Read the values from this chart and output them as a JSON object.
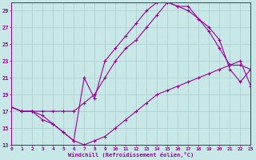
{
  "xlabel": "Windchill (Refroidissement éolien,°C)",
  "background_color": "#c8e8e8",
  "line_color": "#990099",
  "grid_color": "#aacccc",
  "ylim": [
    13,
    30
  ],
  "xlim": [
    0,
    23
  ],
  "yticks": [
    13,
    15,
    17,
    19,
    21,
    23,
    25,
    27,
    29
  ],
  "xticks": [
    0,
    1,
    2,
    3,
    4,
    5,
    6,
    7,
    8,
    9,
    10,
    11,
    12,
    13,
    14,
    15,
    16,
    17,
    18,
    19,
    20,
    21,
    22,
    23
  ],
  "curve1_x": [
    0,
    1,
    2,
    3,
    4,
    5,
    6,
    7,
    8,
    9,
    10,
    11,
    12,
    13,
    14,
    15,
    16,
    17,
    18,
    19,
    20,
    21,
    22,
    23
  ],
  "curve1_y": [
    17.5,
    17.0,
    17.0,
    16.0,
    15.5,
    14.5,
    13.5,
    21.0,
    18.5,
    23.0,
    24.5,
    26.0,
    27.5,
    29.0,
    30.0,
    30.0,
    29.5,
    29.0,
    28.0,
    26.5,
    24.5,
    22.5,
    22.5,
    22.0
  ],
  "curve2_x": [
    0,
    1,
    2,
    3,
    4,
    5,
    6,
    7,
    8,
    9,
    10,
    11,
    12,
    13,
    14,
    15,
    16,
    17,
    18,
    19,
    20,
    21,
    22,
    23
  ],
  "curve2_y": [
    17.5,
    17.0,
    17.0,
    17.0,
    17.0,
    17.0,
    17.0,
    18.0,
    19.0,
    21.0,
    23.0,
    24.5,
    25.5,
    27.0,
    28.5,
    30.0,
    29.5,
    29.5,
    28.0,
    27.0,
    25.5,
    22.0,
    20.5,
    22.0
  ],
  "curve3_x": [
    0,
    1,
    2,
    3,
    4,
    5,
    6,
    7,
    8,
    9,
    10,
    11,
    12,
    13,
    14,
    15,
    16,
    17,
    18,
    19,
    20,
    21,
    22,
    23
  ],
  "curve3_y": [
    17.5,
    17.0,
    17.0,
    16.5,
    15.5,
    14.5,
    13.5,
    13.0,
    13.5,
    14.0,
    15.0,
    16.0,
    17.0,
    18.0,
    19.0,
    19.5,
    20.0,
    20.5,
    21.0,
    21.5,
    22.0,
    22.5,
    23.0,
    20.0
  ]
}
